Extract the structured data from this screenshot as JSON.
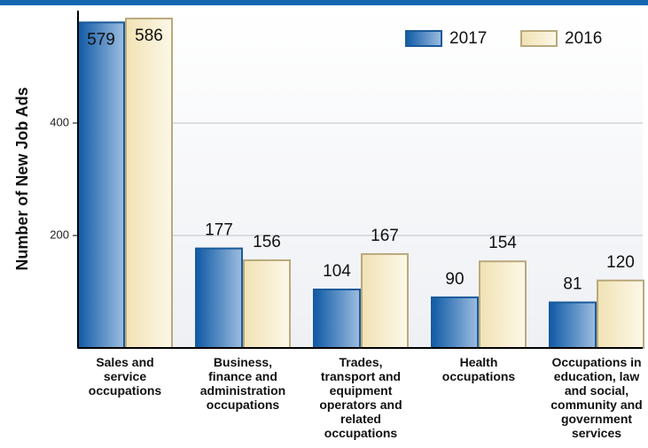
{
  "chart_data": {
    "type": "bar",
    "y_axis_label": "Number of New Job Ads",
    "categories": [
      "Sales and\nservice\noccupations",
      "Business,\nfinance and\nadministration\noccupations",
      "Trades,\ntransport and\nequipment\noperators and\nrelated\noccupations",
      "Health\noccupations",
      "Occupations in\neducation, law\nand social,\ncommunity and\ngovernment\nservices"
    ],
    "series": [
      {
        "name": "2017",
        "color": "#1a64ad",
        "values": [
          579,
          177,
          104,
          90,
          81
        ]
      },
      {
        "name": "2016",
        "color": "#f3e6bd",
        "values": [
          586,
          156,
          167,
          154,
          120
        ]
      }
    ],
    "ylim": [
      0,
      600
    ],
    "yticks": [
      200,
      400
    ],
    "grid": true,
    "legend": "top-right"
  }
}
